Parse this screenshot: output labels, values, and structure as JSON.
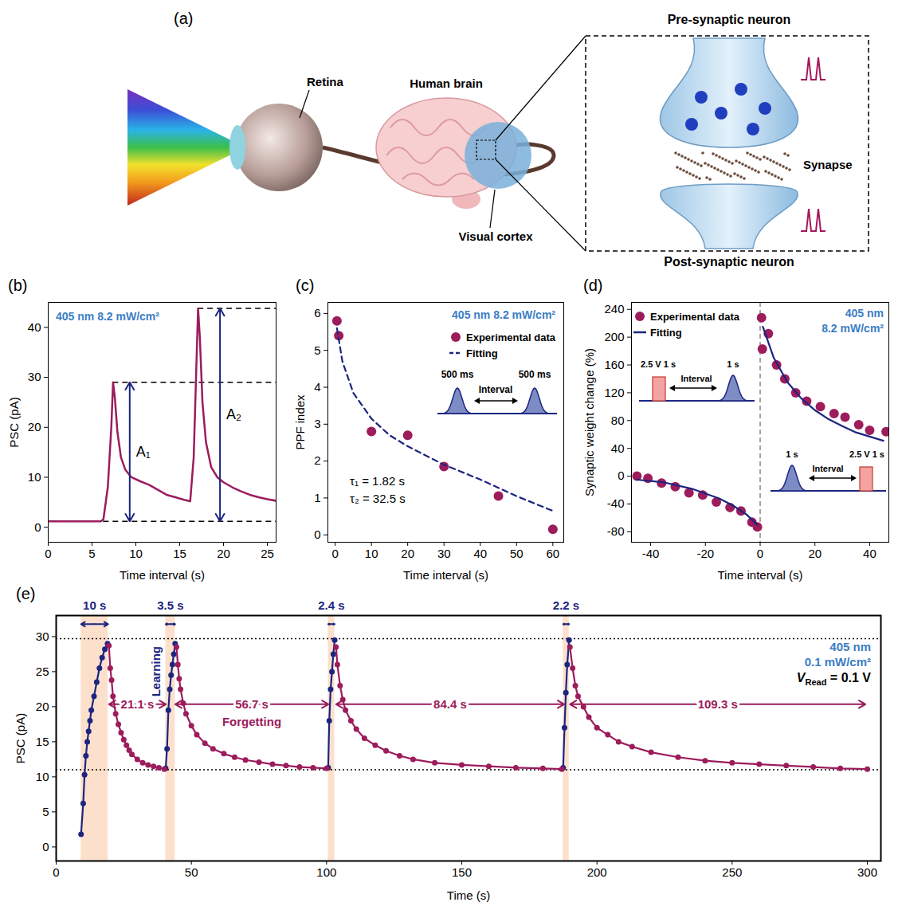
{
  "diagram": {
    "letter": "(a)",
    "labels": {
      "retina": "Retina",
      "brain": "Human brain",
      "cortex": "Visual cortex",
      "synapse": "Synapse",
      "pre": "Pre-synaptic neuron",
      "post": "Post-synaptic neuron"
    }
  },
  "chart_data": [
    {
      "panel": "(b)",
      "type": "line",
      "x_label": "Time interval (s)",
      "y_label": "PSC (pA)",
      "xlim": [
        0,
        26
      ],
      "xticks": [
        0,
        5,
        10,
        15,
        20,
        25
      ],
      "ylim": [
        -3,
        45
      ],
      "yticks": [
        0,
        10,
        20,
        30,
        40
      ],
      "color": "#9c1c5c",
      "annotations": [
        "405 nm 8.2 mW/cm²"
      ],
      "x": [
        0,
        2,
        4,
        6,
        6.3,
        6.8,
        7.2,
        7.4,
        7.6,
        7.9,
        8.3,
        8.8,
        9.5,
        10.5,
        11.5,
        12.5,
        13.5,
        14.5,
        15.5,
        16.2,
        16.6,
        16.9,
        17.1,
        17.3,
        17.6,
        18,
        18.6,
        19.3,
        20,
        21,
        22,
        23,
        24,
        25,
        26
      ],
      "values": [
        1.2,
        1.2,
        1.2,
        1.2,
        1.6,
        8,
        20,
        29,
        26,
        19,
        14,
        11.5,
        10,
        9.2,
        8.5,
        7.5,
        6.5,
        6,
        5.5,
        5.2,
        14,
        32,
        43.8,
        38,
        25,
        17,
        12,
        10,
        9,
        8,
        7.2,
        6.5,
        6,
        5.6,
        5.3
      ],
      "reference_lines": [
        {
          "y": 1.2,
          "x": 6.3
        },
        {
          "y": 29,
          "x": 7.4
        },
        {
          "y": 43.8,
          "x": 17.1
        }
      ],
      "arrows": [
        {
          "label": "A₁",
          "x": 9.3,
          "from": 1.2,
          "to": 29
        },
        {
          "label": "A₂",
          "x": 19.6,
          "from": 1.2,
          "to": 43.8
        }
      ]
    },
    {
      "panel": "(c)",
      "type": "scatter",
      "x_label": "Time interval (s)",
      "y_label": "PPF index",
      "xlim": [
        -2,
        63
      ],
      "xticks": [
        0,
        10,
        20,
        30,
        40,
        50,
        60
      ],
      "ylim": [
        -0.2,
        6.3
      ],
      "yticks": [
        0,
        1,
        2,
        3,
        4,
        5,
        6
      ],
      "legend": "top-right",
      "annotations": [
        "405 nm 8.2 mW/cm²"
      ],
      "fit_parameters": [
        "τ₁ = 1.82 s",
        "τ₂ = 32.5 s"
      ],
      "inset_labels": [
        "500 ms",
        "Interval",
        "500 ms"
      ],
      "series": [
        {
          "name": "Experimental data",
          "type": "scatter",
          "marker": "circle",
          "color": "#9c1c5c",
          "x": [
            0.5,
            1,
            10,
            20,
            30,
            45,
            60
          ],
          "values": [
            5.8,
            5.4,
            2.8,
            2.7,
            1.85,
            1.05,
            0.15
          ]
        },
        {
          "name": "Fitting",
          "type": "line",
          "line_style": "dashed",
          "color": "#1c2580",
          "x": [
            0.5,
            2,
            5,
            10,
            15,
            20,
            30,
            40,
            50,
            60
          ],
          "values": [
            5.6,
            4.7,
            3.85,
            3.15,
            2.7,
            2.4,
            1.9,
            1.5,
            1.05,
            0.65
          ]
        }
      ]
    },
    {
      "panel": "(d)",
      "type": "scatter",
      "x_label": "Time interval (s)",
      "y_label": "Synaptic weight change (%)",
      "xlim": [
        -47,
        47
      ],
      "xticks": [
        -40,
        -20,
        0,
        20,
        40
      ],
      "ylim": [
        -95,
        250
      ],
      "yticks": [
        -80,
        -40,
        0,
        40,
        80,
        120,
        160,
        200,
        240
      ],
      "legend": "top-left",
      "annotations": [
        "405 nm",
        "8.2 mW/cm²"
      ],
      "inset_labels": [
        "2.5 V 1 s",
        "Interval",
        "1 s"
      ],
      "vline": 0,
      "series": [
        {
          "name": "Experimental data",
          "type": "scatter",
          "marker": "circle",
          "color": "#9c1c5c",
          "x": [
            -45,
            -41,
            -36,
            -31,
            -26,
            -21,
            -16,
            -11,
            -7,
            -3,
            -1,
            0.5,
            0.8,
            3,
            6,
            9,
            13,
            17,
            22,
            27,
            31,
            36,
            40,
            46
          ],
          "values": [
            0,
            -3,
            -10,
            -15,
            -24,
            -27,
            -37,
            -45,
            -50,
            -66,
            -73,
            228,
            183,
            205,
            160,
            140,
            120,
            108,
            100,
            90,
            85,
            74,
            66,
            64
          ]
        },
        {
          "name": "Fitting",
          "type": "line",
          "line_style": "solid",
          "color": "#1c2580",
          "x": [
            -45,
            -35,
            -25,
            -15,
            -10,
            -5,
            -1,
            0,
            1,
            5,
            10,
            15,
            20,
            25,
            30,
            35,
            40,
            45
          ],
          "values": [
            -5,
            -9,
            -18,
            -32,
            -42,
            -55,
            -70,
            null,
            215,
            170,
            135,
            112,
            95,
            82,
            72,
            63,
            57,
            51
          ]
        }
      ]
    },
    {
      "panel": "(e)",
      "type": "line",
      "x_label": "Time (s)",
      "y_label": "PSC (pA)",
      "xlim": [
        0,
        305
      ],
      "xticks": [
        0,
        50,
        100,
        150,
        200,
        250,
        300
      ],
      "ylim": [
        -2,
        33
      ],
      "yticks": [
        0,
        5,
        10,
        15,
        20,
        25,
        30
      ],
      "annotations": [
        "405 nm",
        "0.1 mW/cm²"
      ],
      "read_voltage": {
        "symbol": "V",
        "subscript": "Read",
        "text": "= 0.1 V"
      },
      "reference_lines": [
        29.7,
        11
      ],
      "learning_durations": [
        {
          "label": "10 s",
          "from": 9.2,
          "to": 19.2
        },
        {
          "label": "3.5 s",
          "from": 40.5,
          "to": 44
        },
        {
          "label": "2.4 s",
          "from": 100.6,
          "to": 103
        },
        {
          "label": "2.2 s",
          "from": 187.5,
          "to": 189.7
        }
      ],
      "forgetting_durations": [
        {
          "label": "21.1 s",
          "from": 19.5,
          "to": 40.6
        },
        {
          "label": "56.7 s",
          "from": 44,
          "to": 100.7
        },
        {
          "label": "84.4 s",
          "from": 103.5,
          "to": 187.9
        },
        {
          "label": "109.3 s",
          "from": 190,
          "to": 299.3
        }
      ],
      "series": [
        {
          "name": "Learning",
          "color": "#1c2580",
          "marker": "circle",
          "x": [
            9.2,
            10,
            10.5,
            11,
            11.5,
            12,
            12.5,
            13,
            14,
            15,
            16,
            17,
            18,
            19,
            null,
            40.5,
            41,
            41.5,
            42,
            42.5,
            43,
            43.5,
            44,
            null,
            100.6,
            101,
            101.5,
            102,
            102.5,
            103,
            null,
            187.5,
            188,
            188.5,
            189,
            189.7
          ],
          "values": [
            1.8,
            6.2,
            10.3,
            13,
            15,
            16.5,
            18,
            19.5,
            21.5,
            23.5,
            25.5,
            27,
            28.2,
            29,
            null,
            11.2,
            14,
            19.5,
            22.5,
            24.5,
            26,
            27.5,
            29,
            null,
            11.3,
            18,
            22.5,
            25,
            27.5,
            29.5,
            null,
            11.3,
            17,
            22,
            26,
            29.5
          ]
        },
        {
          "name": "Forgetting",
          "color": "#9c1c5c",
          "marker": "circle",
          "x": [
            19.5,
            20,
            20.5,
            21,
            22,
            23,
            24,
            25,
            26,
            27,
            28,
            30,
            32,
            34,
            36,
            38,
            40,
            null,
            44.5,
            45,
            45.5,
            46,
            47,
            48,
            50,
            52,
            55,
            58,
            62,
            66,
            70,
            75,
            80,
            85,
            90,
            95,
            100,
            null,
            103.5,
            104,
            105,
            106,
            107,
            109,
            111,
            114,
            118,
            122,
            127,
            132,
            140,
            150,
            160,
            170,
            180,
            187,
            null,
            190,
            191,
            192,
            193,
            195,
            197,
            200,
            204,
            208,
            213,
            220,
            230,
            240,
            250,
            260,
            270,
            280,
            290,
            300
          ],
          "values": [
            28.7,
            25.5,
            23.8,
            21.5,
            19,
            17.5,
            16.3,
            15.3,
            14.5,
            13.8,
            13.2,
            12.5,
            12,
            11.7,
            11.5,
            11.3,
            11.1,
            null,
            28.5,
            26,
            24,
            22.5,
            20.5,
            19,
            17.3,
            16,
            14.8,
            14,
            13.3,
            12.8,
            12.4,
            12.1,
            11.8,
            11.6,
            11.4,
            11.3,
            11.2,
            null,
            28.5,
            26,
            23,
            21,
            19.5,
            18,
            16.8,
            15.5,
            14.5,
            13.7,
            13,
            12.5,
            12,
            11.7,
            11.5,
            11.3,
            11.2,
            11.1,
            null,
            28.5,
            25.5,
            23,
            21.5,
            20,
            18.5,
            17,
            16,
            15,
            14.3,
            13.5,
            12.8,
            12.3,
            12,
            11.8,
            11.6,
            11.4,
            11.2,
            11.1
          ]
        }
      ]
    }
  ]
}
